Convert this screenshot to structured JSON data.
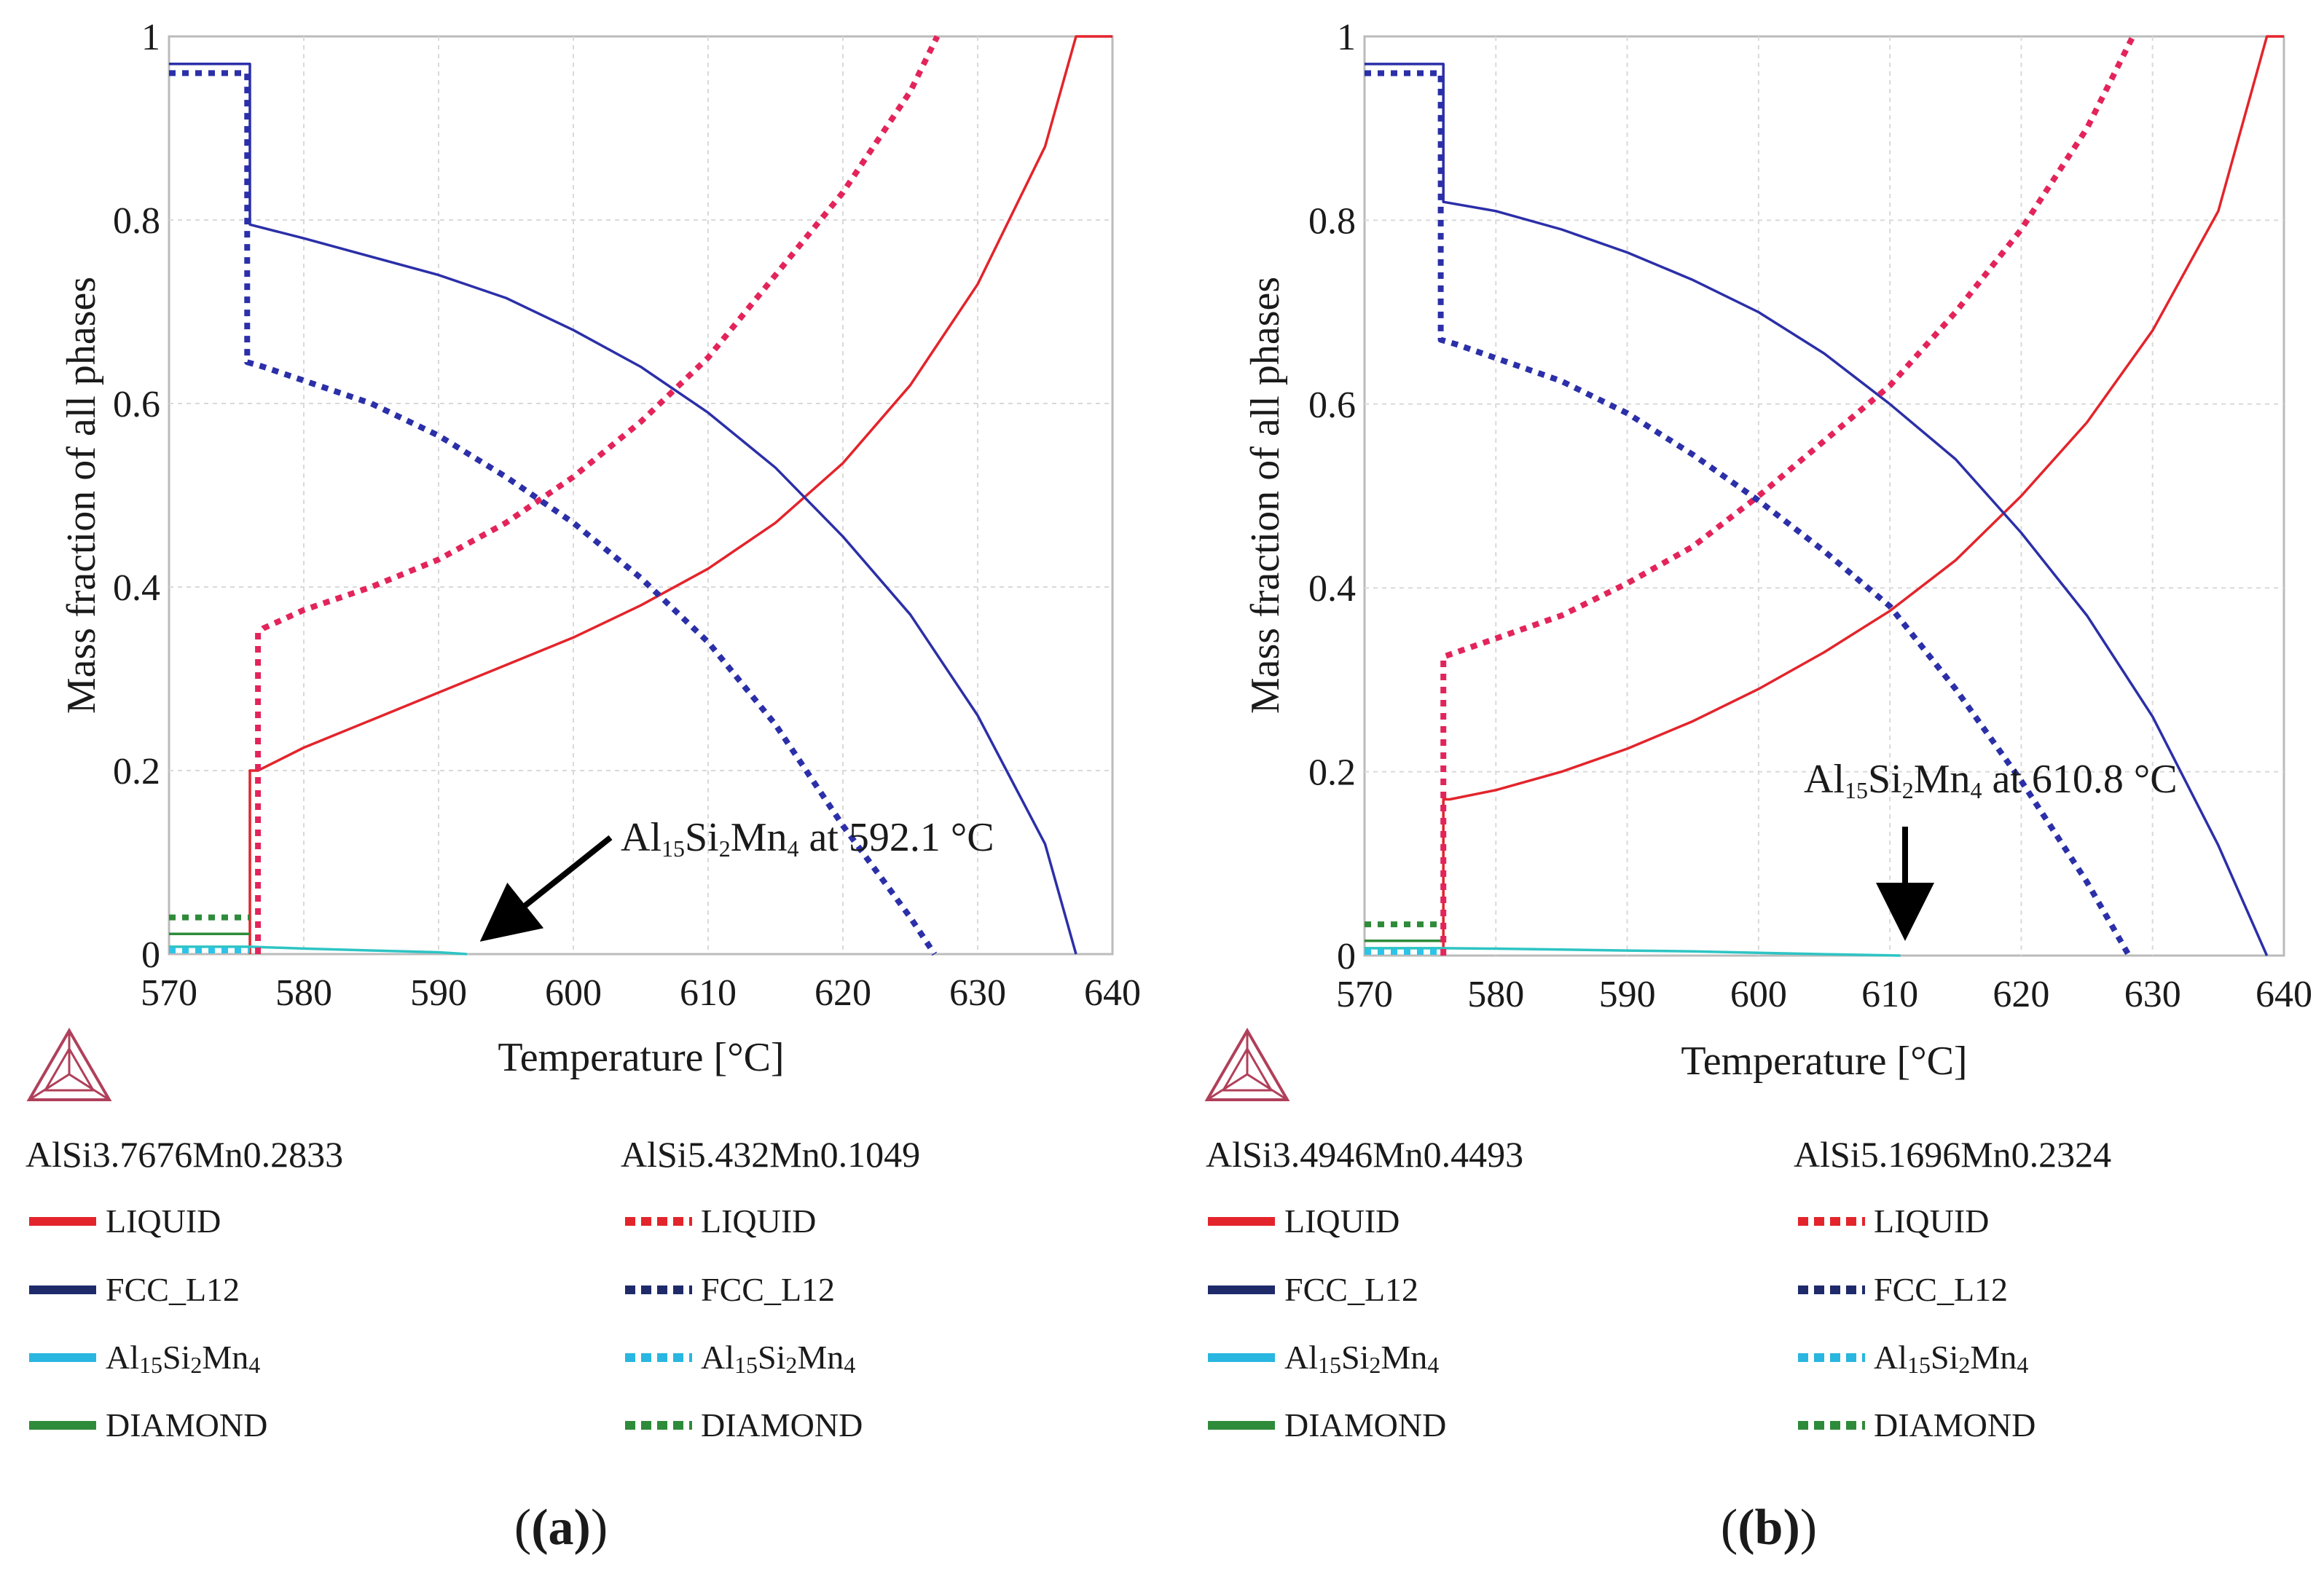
{
  "figure": {
    "panels": [
      "(a)",
      "(b)"
    ]
  },
  "chart_data": [
    {
      "type": "line",
      "panel": "(a)",
      "xlabel": "Temperature [°C]",
      "ylabel": "Mass fraction of all phases",
      "xlim": [
        570,
        640
      ],
      "ylim": [
        0,
        1
      ],
      "xticks": [
        570,
        580,
        590,
        600,
        610,
        620,
        630,
        640
      ],
      "yticks": [
        0,
        0.2,
        0.4,
        0.6,
        0.8,
        1
      ],
      "ytick_labels": [
        "0",
        "0.2",
        "0.4",
        "0.6",
        "0.8",
        "1"
      ],
      "grid": true,
      "annotation": {
        "base": "Al",
        "s1": "15",
        "mid1": "Si",
        "s2": "2",
        "mid2": "Mn",
        "s3": "4",
        "rest": " at 592.1 °C",
        "target": [
          592.1,
          0
        ]
      },
      "alloys": [
        "AlSi3.7676Mn0.2833",
        "AlSi5.432Mn0.1049"
      ],
      "series": [
        {
          "name": "LIQUID",
          "alloy": "AlSi3.7676Mn0.2833",
          "style": "solid",
          "color": "#e3242b",
          "x": [
            576,
            576,
            576.6,
            580,
            585,
            590,
            595,
            600,
            605,
            610,
            615,
            620,
            625,
            630,
            635,
            637.3,
            640
          ],
          "y": [
            0,
            0.2,
            0.2,
            0.225,
            0.255,
            0.285,
            0.315,
            0.345,
            0.38,
            0.42,
            0.47,
            0.535,
            0.62,
            0.73,
            0.88,
            1,
            1
          ]
        },
        {
          "name": "FCC_L12",
          "alloy": "AlSi3.7676Mn0.2833",
          "style": "solid",
          "color": "#2b2fa8",
          "x": [
            570,
            576,
            576,
            580,
            585,
            590,
            595,
            600,
            605,
            610,
            615,
            620,
            625,
            630,
            635,
            637.3
          ],
          "y": [
            0.97,
            0.97,
            0.795,
            0.78,
            0.76,
            0.74,
            0.715,
            0.68,
            0.64,
            0.59,
            0.53,
            0.455,
            0.37,
            0.26,
            0.12,
            0
          ]
        },
        {
          "name": "Al15Si2Mn4",
          "alloy": "AlSi3.7676Mn0.2833",
          "style": "solid",
          "color": "#2ec4c4",
          "x": [
            570,
            576,
            580,
            585,
            590,
            592.1
          ],
          "y": [
            0.008,
            0.008,
            0.006,
            0.004,
            0.002,
            0
          ]
        },
        {
          "name": "DIAMOND",
          "alloy": "AlSi3.7676Mn0.2833",
          "style": "solid",
          "color": "#2e8b3a",
          "x": [
            570,
            576
          ],
          "y": [
            0.022,
            0.022
          ]
        },
        {
          "name": "LIQUID",
          "alloy": "AlSi5.432Mn0.1049",
          "style": "dotted",
          "color": "#e3245a",
          "x": [
            576.6,
            576.6,
            577,
            580,
            585,
            590,
            595,
            600,
            605,
            610,
            615,
            620,
            625,
            627
          ],
          "y": [
            0,
            0.35,
            0.355,
            0.375,
            0.4,
            0.43,
            0.47,
            0.52,
            0.58,
            0.65,
            0.74,
            0.83,
            0.94,
            1
          ]
        },
        {
          "name": "FCC_L12",
          "alloy": "AlSi5.432Mn0.1049",
          "style": "dotted",
          "color": "#2b2fa8",
          "x": [
            570,
            575.8,
            575.8,
            577,
            580,
            585,
            590,
            595,
            600,
            605,
            610,
            615,
            620,
            625,
            626.8
          ],
          "y": [
            0.96,
            0.96,
            0.645,
            0.64,
            0.625,
            0.6,
            0.565,
            0.52,
            0.47,
            0.41,
            0.34,
            0.25,
            0.14,
            0.04,
            0
          ]
        },
        {
          "name": "Al15Si2Mn4",
          "alloy": "AlSi5.432Mn0.1049",
          "style": "dotted",
          "color": "#2ec4e8",
          "x": [
            570,
            576
          ],
          "y": [
            0.004,
            0.004
          ]
        },
        {
          "name": "DIAMOND",
          "alloy": "AlSi5.432Mn0.1049",
          "style": "dotted",
          "color": "#2e8b3a",
          "x": [
            570,
            576
          ],
          "y": [
            0.04,
            0.04
          ]
        }
      ]
    },
    {
      "type": "line",
      "panel": "(b)",
      "xlabel": "Temperature [°C]",
      "ylabel": "Mass fraction of all phases",
      "xlim": [
        570,
        640
      ],
      "ylim": [
        0,
        1
      ],
      "xticks": [
        570,
        580,
        590,
        600,
        610,
        620,
        630,
        640
      ],
      "yticks": [
        0,
        0.2,
        0.4,
        0.6,
        0.8,
        1
      ],
      "ytick_labels": [
        "0",
        "0.2",
        "0.4",
        "0.6",
        "0.8",
        "1"
      ],
      "grid": true,
      "annotation": {
        "base": "Al",
        "s1": "15",
        "mid1": "Si",
        "s2": "2",
        "mid2": "Mn",
        "s3": "4",
        "rest": " at 610.8 °C",
        "target": [
          610.8,
          0
        ]
      },
      "alloys": [
        "AlSi3.4946Mn0.4493",
        "AlSi5.1696Mn0.2324"
      ],
      "series": [
        {
          "name": "LIQUID",
          "alloy": "AlSi3.4946Mn0.4493",
          "style": "solid",
          "color": "#e3242b",
          "x": [
            576,
            576,
            576.5,
            580,
            585,
            590,
            595,
            600,
            605,
            610,
            615,
            620,
            625,
            630,
            635,
            638.7,
            640
          ],
          "y": [
            0,
            0.17,
            0.17,
            0.18,
            0.2,
            0.225,
            0.255,
            0.29,
            0.33,
            0.375,
            0.43,
            0.5,
            0.58,
            0.68,
            0.81,
            1,
            1
          ]
        },
        {
          "name": "FCC_L12",
          "alloy": "AlSi3.4946Mn0.4493",
          "style": "solid",
          "color": "#2b2fa8",
          "x": [
            570,
            576,
            576,
            580,
            585,
            590,
            595,
            600,
            605,
            610,
            615,
            620,
            625,
            630,
            635,
            638.7
          ],
          "y": [
            0.97,
            0.97,
            0.82,
            0.81,
            0.79,
            0.765,
            0.735,
            0.7,
            0.655,
            0.6,
            0.54,
            0.46,
            0.37,
            0.26,
            0.12,
            0
          ]
        },
        {
          "name": "Al15Si2Mn4",
          "alloy": "AlSi3.4946Mn0.4493",
          "style": "solid",
          "color": "#2ec4c4",
          "x": [
            570,
            576,
            580,
            585,
            590,
            595,
            600,
            605,
            610.8
          ],
          "y": [
            0.008,
            0.008,
            0.0075,
            0.0065,
            0.0055,
            0.0045,
            0.003,
            0.0015,
            0
          ]
        },
        {
          "name": "DIAMOND",
          "alloy": "AlSi3.4946Mn0.4493",
          "style": "solid",
          "color": "#2e8b3a",
          "x": [
            570,
            576
          ],
          "y": [
            0.016,
            0.016
          ]
        },
        {
          "name": "LIQUID",
          "alloy": "AlSi5.1696Mn0.2324",
          "style": "dotted",
          "color": "#e3245a",
          "x": [
            576,
            576,
            577,
            580,
            585,
            590,
            595,
            600,
            605,
            610,
            615,
            620,
            625,
            628.5
          ],
          "y": [
            0,
            0.325,
            0.33,
            0.345,
            0.37,
            0.405,
            0.445,
            0.5,
            0.56,
            0.62,
            0.7,
            0.79,
            0.9,
            1
          ]
        },
        {
          "name": "FCC_L12",
          "alloy": "AlSi5.1696Mn0.2324",
          "style": "dotted",
          "color": "#2b2fa8",
          "x": [
            570,
            575.8,
            575.8,
            577,
            580,
            585,
            590,
            595,
            600,
            605,
            610,
            615,
            620,
            625,
            628.2
          ],
          "y": [
            0.96,
            0.96,
            0.67,
            0.665,
            0.65,
            0.625,
            0.59,
            0.545,
            0.495,
            0.44,
            0.38,
            0.29,
            0.19,
            0.08,
            0
          ]
        },
        {
          "name": "Al15Si2Mn4",
          "alloy": "AlSi5.1696Mn0.2324",
          "style": "dotted",
          "color": "#2ec4e8",
          "x": [
            570,
            576
          ],
          "y": [
            0.004,
            0.004
          ]
        },
        {
          "name": "DIAMOND",
          "alloy": "AlSi5.1696Mn0.2324",
          "style": "dotted",
          "color": "#2e8b3a",
          "x": [
            570,
            576
          ],
          "y": [
            0.034,
            0.034
          ]
        }
      ]
    }
  ],
  "legend": {
    "panels": [
      {
        "col1_title": "AlSi3.7676Mn0.2833",
        "col2_title": "AlSi5.432Mn0.1049"
      },
      {
        "col1_title": "AlSi3.4946Mn0.4493",
        "col2_title": "AlSi5.1696Mn0.2324"
      }
    ],
    "entries": [
      {
        "label": "LIQUID",
        "color": "#e3242b"
      },
      {
        "label": "FCC_L12",
        "color": "#1f2a6b"
      },
      {
        "label_base": "Al",
        "s1": "15",
        "mid1": "Si",
        "s2": "2",
        "mid2": "Mn",
        "s3": "4",
        "color": "#29b6e0"
      },
      {
        "label": "DIAMOND",
        "color": "#2e8b3a"
      }
    ]
  }
}
